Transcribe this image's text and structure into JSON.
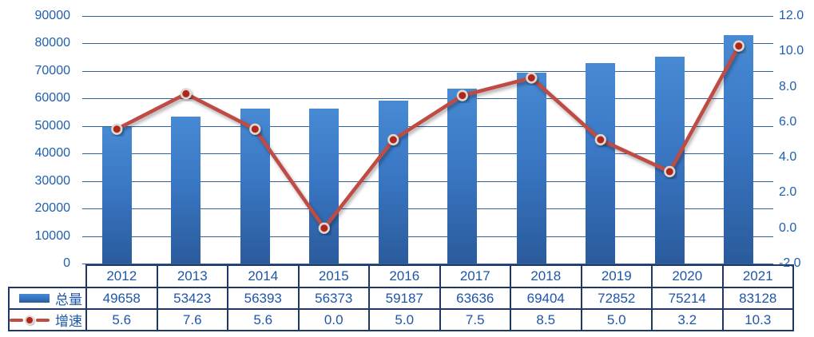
{
  "chart_data": {
    "type": "combo-bar-line",
    "categories": [
      "2012",
      "2013",
      "2014",
      "2015",
      "2016",
      "2017",
      "2018",
      "2019",
      "2020",
      "2021"
    ],
    "series": [
      {
        "name": "总量",
        "type": "bar",
        "axis": "left",
        "values": [
          49658,
          53423,
          56393,
          56373,
          59187,
          63636,
          69404,
          72852,
          75214,
          83128
        ]
      },
      {
        "name": "增速",
        "type": "line",
        "axis": "right",
        "values": [
          5.6,
          7.6,
          5.6,
          0.0,
          5.0,
          7.5,
          8.5,
          5.0,
          3.2,
          10.3
        ]
      }
    ],
    "left_axis": {
      "min": 0,
      "max": 90000,
      "step": 10000,
      "tick_labels": [
        "90000",
        "80000",
        "70000",
        "60000",
        "50000",
        "40000",
        "30000",
        "20000",
        "10000",
        "0"
      ]
    },
    "right_axis": {
      "min": -2.0,
      "max": 12.0,
      "step": 2.0,
      "tick_labels": [
        "12.0",
        "10.0",
        "8.0",
        "6.0",
        "4.0",
        "2.0",
        "0.0",
        "-2.0"
      ]
    },
    "grid": true,
    "legend_position": "table-left",
    "title": ""
  },
  "table": {
    "year_row": [
      "2012",
      "2013",
      "2014",
      "2015",
      "2016",
      "2017",
      "2018",
      "2019",
      "2020",
      "2021"
    ],
    "rows": [
      {
        "label": "总量",
        "swatch": "bar-swatch",
        "values": [
          "49658",
          "53423",
          "56393",
          "56373",
          "59187",
          "63636",
          "69404",
          "72852",
          "75214",
          "83128"
        ]
      },
      {
        "label": "增速",
        "swatch": "line-swatch",
        "values": [
          "5.6",
          "7.6",
          "5.6",
          "0.0",
          "5.0",
          "7.5",
          "8.5",
          "5.0",
          "3.2",
          "10.3"
        ]
      }
    ]
  },
  "colors": {
    "bar_fill_top": "#478ad3",
    "bar_fill_bottom": "#2a5b9c",
    "line": "#bf4b45",
    "marker_fill": "#b0251c",
    "marker_ring": "#ded8cf",
    "gridline": "#33639f",
    "axis_text": "#1e5fb0",
    "table_text": "#1e56a8",
    "table_border": "#1f3864"
  }
}
